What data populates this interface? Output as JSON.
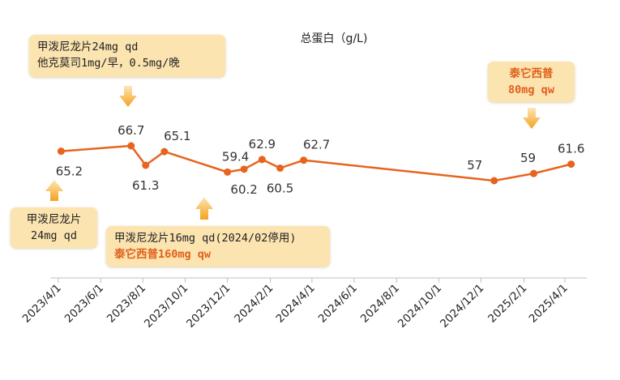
{
  "chart_data": {
    "type": "line",
    "title": "总蛋白（g/L)",
    "xlabel": "",
    "ylabel": "",
    "x_ticks": [
      "2023/4/1",
      "2023/6/1",
      "2023/8/1",
      "2023/10/1",
      "2023/12/1",
      "2024/2/1",
      "2024/4/1",
      "2024/6/1",
      "2024/8/1",
      "2024/10/1",
      "2024/12/1",
      "2025/2/1",
      "2025/4/1"
    ],
    "series": [
      {
        "name": "总蛋白",
        "color": "#e8631e",
        "points": [
          {
            "date": "2023-04-05",
            "value": 65.2,
            "label": "65.2"
          },
          {
            "date": "2023-07-15",
            "value": 66.7,
            "label": "66.7"
          },
          {
            "date": "2023-08-05",
            "value": 61.3,
            "label": "61.3"
          },
          {
            "date": "2023-09-01",
            "value": 65.1,
            "label": "65.1"
          },
          {
            "date": "2023-12-01",
            "value": 59.4,
            "label": "59.4"
          },
          {
            "date": "2023-12-25",
            "value": 60.2,
            "label": "60.2"
          },
          {
            "date": "2024-01-20",
            "value": 62.9,
            "label": "62.9"
          },
          {
            "date": "2024-02-15",
            "value": 60.5,
            "label": "60.5"
          },
          {
            "date": "2024-03-20",
            "value": 62.7,
            "label": "62.7"
          },
          {
            "date": "2024-12-20",
            "value": 57,
            "label": "57"
          },
          {
            "date": "2025-02-15",
            "value": 59,
            "label": "59"
          },
          {
            "date": "2025-04-10",
            "value": 61.6,
            "label": "61.6"
          }
        ]
      }
    ],
    "ylim": [
      40,
      80
    ],
    "grid": false,
    "legend": "none"
  },
  "annotations": {
    "a1": {
      "lines": [
        "甲泼尼龙片24mg qd",
        "他克莫司1mg/早，0.5mg/晚"
      ]
    },
    "a2": {
      "lines": [
        "甲泼尼龙片",
        "24mg qd"
      ]
    },
    "a3": {
      "line1": "甲泼尼龙片16mg qd(2024/02停用)",
      "line2": "泰它西普160mg qw"
    },
    "a4": {
      "line1": "泰它西普",
      "line2": "80mg qw"
    }
  },
  "colors": {
    "line": "#e8631e",
    "box_bg": "#fce4b0",
    "highlight": "#e0601b",
    "arrow": "#f5a623"
  }
}
